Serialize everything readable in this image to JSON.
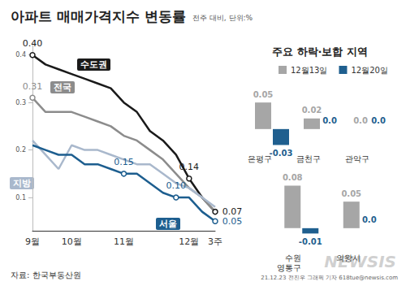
{
  "credit": "21.12.23 전진우 그래픽 기자 618tue@newsis.com",
  "watermark": "NEWSIS",
  "chart_data": [
    {
      "type": "line",
      "title": "아파트 매매가격지수 변동률",
      "subtitle": "전주 대비, 단위:%",
      "source": "자료: 한국부동산원",
      "categories": [
        "9월",
        null,
        null,
        "10월",
        null,
        null,
        null,
        "11월",
        null,
        null,
        null,
        null,
        "12월",
        null,
        "3주"
      ],
      "series": [
        {
          "name": "수도권",
          "color": "#1a1a1a",
          "values": [
            0.4,
            0.38,
            0.37,
            0.36,
            0.35,
            0.34,
            0.33,
            0.3,
            0.28,
            0.24,
            0.22,
            0.19,
            0.14,
            0.1,
            0.07
          ],
          "value_labels": [
            "0.40",
            null,
            null,
            null,
            null,
            null,
            null,
            null,
            null,
            null,
            null,
            null,
            "0.14",
            null,
            "0.07"
          ]
        },
        {
          "name": "전국",
          "color": "#8c8c8c",
          "values": [
            0.31,
            0.28,
            0.28,
            0.28,
            0.27,
            0.26,
            0.25,
            0.23,
            0.22,
            0.2,
            0.18,
            0.15,
            0.12,
            0.1,
            0.07
          ],
          "value_labels": [
            "0.31",
            null,
            null,
            null,
            null,
            null,
            null,
            null,
            null,
            null,
            null,
            null,
            null,
            null,
            null
          ]
        },
        {
          "name": "지방",
          "color": "#a9b8cc",
          "values": [
            0.22,
            0.19,
            0.16,
            0.21,
            0.2,
            0.2,
            0.19,
            0.18,
            0.17,
            0.17,
            0.15,
            0.13,
            0.12,
            0.1,
            0.08
          ],
          "value_labels": [
            null,
            null,
            null,
            null,
            null,
            null,
            null,
            null,
            null,
            null,
            null,
            null,
            null,
            null,
            null
          ]
        },
        {
          "name": "서울",
          "color": "#1d5e8f",
          "values": [
            0.21,
            0.2,
            0.19,
            0.19,
            0.17,
            0.17,
            0.16,
            0.15,
            0.15,
            0.13,
            0.11,
            0.1,
            0.1,
            0.07,
            0.05
          ],
          "value_labels": [
            null,
            null,
            null,
            null,
            null,
            null,
            null,
            "0.15",
            null,
            null,
            null,
            "0.10",
            null,
            null,
            "0.05"
          ]
        }
      ],
      "ylim": [
        0.03,
        0.42
      ],
      "yticks": [
        0.1,
        0.2,
        0.3,
        0.4
      ],
      "grid": false,
      "data_labels": true
    },
    {
      "type": "bar",
      "title": "주요 하락·보합 지역",
      "categories": [
        "은평구",
        "금천구",
        "관악구"
      ],
      "series": [
        {
          "name": "12월13일",
          "color": "#a6a6a6",
          "values": [
            0.05,
            0.02,
            0
          ],
          "value_labels": [
            "0.05",
            "0.02",
            "0.0"
          ]
        },
        {
          "name": "12월20일",
          "color": "#1f5f8f",
          "values": [
            -0.03,
            0,
            0
          ],
          "value_labels": [
            "-0.03",
            "0.0",
            "0.0"
          ]
        }
      ],
      "ylim": [
        -0.04,
        0.09
      ],
      "tick_labels": "x",
      "legend": "top",
      "data_labels": true
    },
    {
      "type": "bar",
      "categories": [
        "수원\n영통구",
        "의왕시"
      ],
      "series": [
        {
          "name": "12월13일",
          "color": "#a6a6a6",
          "values": [
            0.08,
            0.05
          ],
          "value_labels": [
            "0.08",
            "0.05"
          ]
        },
        {
          "name": "12월20일",
          "color": "#1f5f8f",
          "values": [
            -0.01,
            0
          ],
          "value_labels": [
            "-0.01",
            "0.0"
          ]
        }
      ],
      "ylim": [
        -0.04,
        0.09
      ],
      "tick_labels": "x",
      "data_labels": true
    }
  ]
}
